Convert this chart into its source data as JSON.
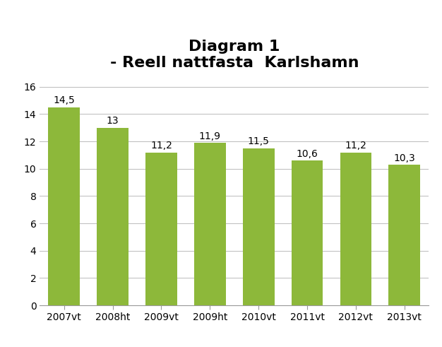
{
  "title_line1": "Diagram 1",
  "title_line2": "- Reell nattfasta  Karlshamn",
  "categories": [
    "2007vt",
    "2008ht",
    "2009vt",
    "2009ht",
    "2010vt",
    "2011vt",
    "2012vt",
    "2013vt"
  ],
  "values": [
    14.5,
    13.0,
    11.2,
    11.9,
    11.5,
    10.6,
    11.2,
    10.3
  ],
  "value_labels": [
    "14,5",
    "13",
    "11,2",
    "11,9",
    "11,5",
    "10,6",
    "11,2",
    "10,3"
  ],
  "bar_color": "#8DB83A",
  "bar_edge_color": "#8DB83A",
  "ylim": [
    0,
    16
  ],
  "yticks": [
    0,
    2,
    4,
    6,
    8,
    10,
    12,
    14,
    16
  ],
  "title_fontsize": 16,
  "subtitle_fontsize": 14,
  "tick_fontsize": 10,
  "value_label_fontsize": 10,
  "background_color": "#FFFFFF",
  "grid_color": "#BBBBBB",
  "bar_width": 0.65
}
